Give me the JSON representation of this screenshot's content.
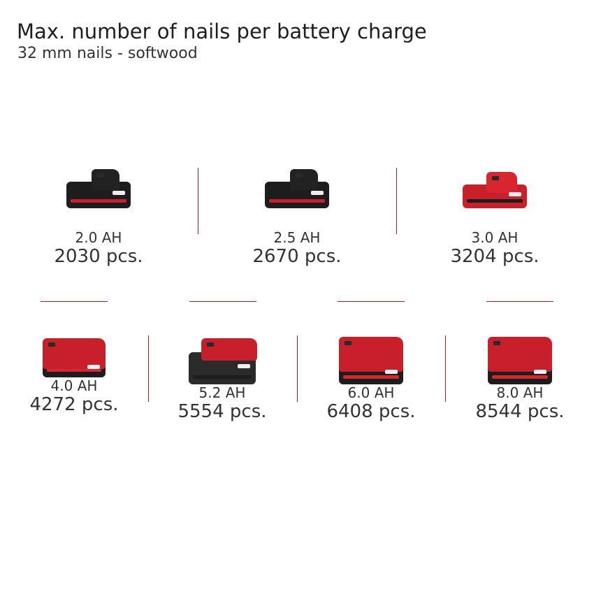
{
  "title": "Max. number of nails per battery charge",
  "subtitle": "32 mm nails - softwood",
  "accent_color": "#b01c24",
  "batteries": [
    {
      "capacity": "2.0 AH",
      "nails": "2030 pcs.",
      "style": "black-compact"
    },
    {
      "capacity": "2.5 AH",
      "nails": "2670 pcs.",
      "style": "black-compact"
    },
    {
      "capacity": "3.0 AH",
      "nails": "3204 pcs.",
      "style": "red-compact"
    },
    {
      "capacity": "4.0 AH",
      "nails": "4272 pcs.",
      "style": "red-black"
    },
    {
      "capacity": "5.2 AH",
      "nails": "5554 pcs.",
      "style": "black-large"
    },
    {
      "capacity": "6.0 AH",
      "nails": "6408 pcs.",
      "style": "red-large"
    },
    {
      "capacity": "8.0 AH",
      "nails": "8544 pcs.",
      "style": "red-large"
    }
  ]
}
